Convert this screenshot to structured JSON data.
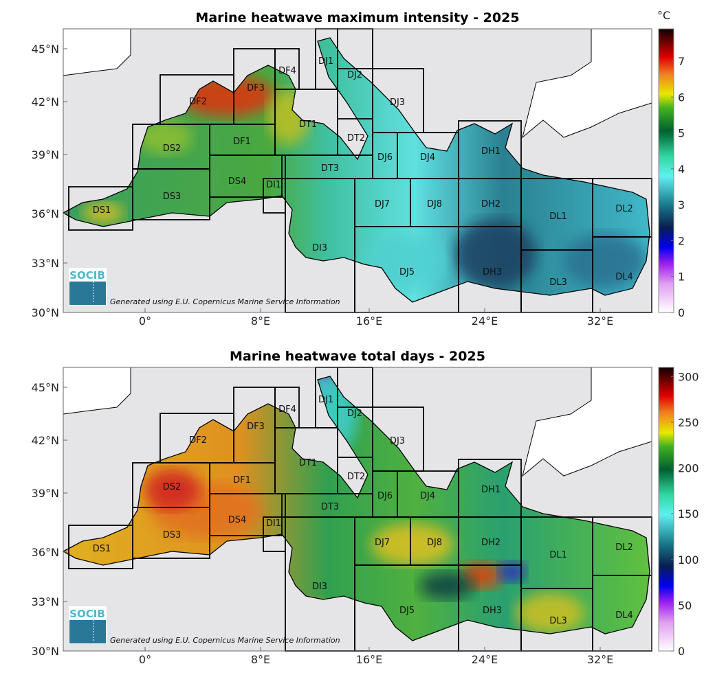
{
  "chart_data": [
    {
      "type": "heatmap",
      "title": "Marine heatwave maximum intensity - 2025",
      "colorbar": {
        "label": "°C",
        "range": [
          0,
          7.9
        ],
        "ticks": [
          "0",
          "1",
          "2",
          "3",
          "4",
          "5",
          "6",
          "7"
        ],
        "tick_values": [
          0,
          1,
          2,
          3,
          4,
          5,
          6,
          7
        ]
      },
      "x_ticks": [
        "0°",
        "8°E",
        "16°E",
        "24°E",
        "32°E"
      ],
      "y_ticks": [
        "45°N",
        "42°N",
        "39°N",
        "36°N",
        "33°N",
        "30°N"
      ],
      "xlim": [
        -5.7,
        35.1
      ],
      "ylim": [
        30,
        46.1
      ],
      "credit": "Generated using E.U. Copernicus Marine Service Information",
      "logo": "SOCIB"
    },
    {
      "type": "heatmap",
      "title": "Marine heatwave total days - 2025",
      "colorbar": {
        "label": "",
        "range": [
          0,
          310
        ],
        "ticks": [
          "0",
          "50",
          "100",
          "150",
          "200",
          "250",
          "300"
        ],
        "tick_values": [
          0,
          50,
          100,
          150,
          200,
          250,
          300
        ]
      },
      "x_ticks": [
        "0°",
        "8°E",
        "16°E",
        "24°E",
        "32°E"
      ],
      "y_ticks": [
        "45°N",
        "42°N",
        "39°N",
        "36°N",
        "33°N",
        "30°N"
      ],
      "xlim": [
        -5.7,
        35.1
      ],
      "ylim": [
        30,
        46.1
      ],
      "credit": "Generated using E.U. Copernicus Marine Service Information",
      "logo": "SOCIB"
    }
  ],
  "regions": [
    "DS1",
    "DS2",
    "DS3",
    "DS4",
    "DF1",
    "DF2",
    "DF3",
    "DF4",
    "DI1",
    "DT1",
    "DT2",
    "DT3",
    "DJ1",
    "DJ2",
    "DJ3",
    "DJ4",
    "DJ6",
    "DJ7",
    "DJ8",
    "DI3",
    "DJ5",
    "DH1",
    "DH2",
    "DH3",
    "DL1",
    "DL2",
    "DL3",
    "DL4"
  ],
  "colors": {
    "land": "#ffffff",
    "ocean_bg": "#e5e5e8",
    "frame": "#000000"
  }
}
